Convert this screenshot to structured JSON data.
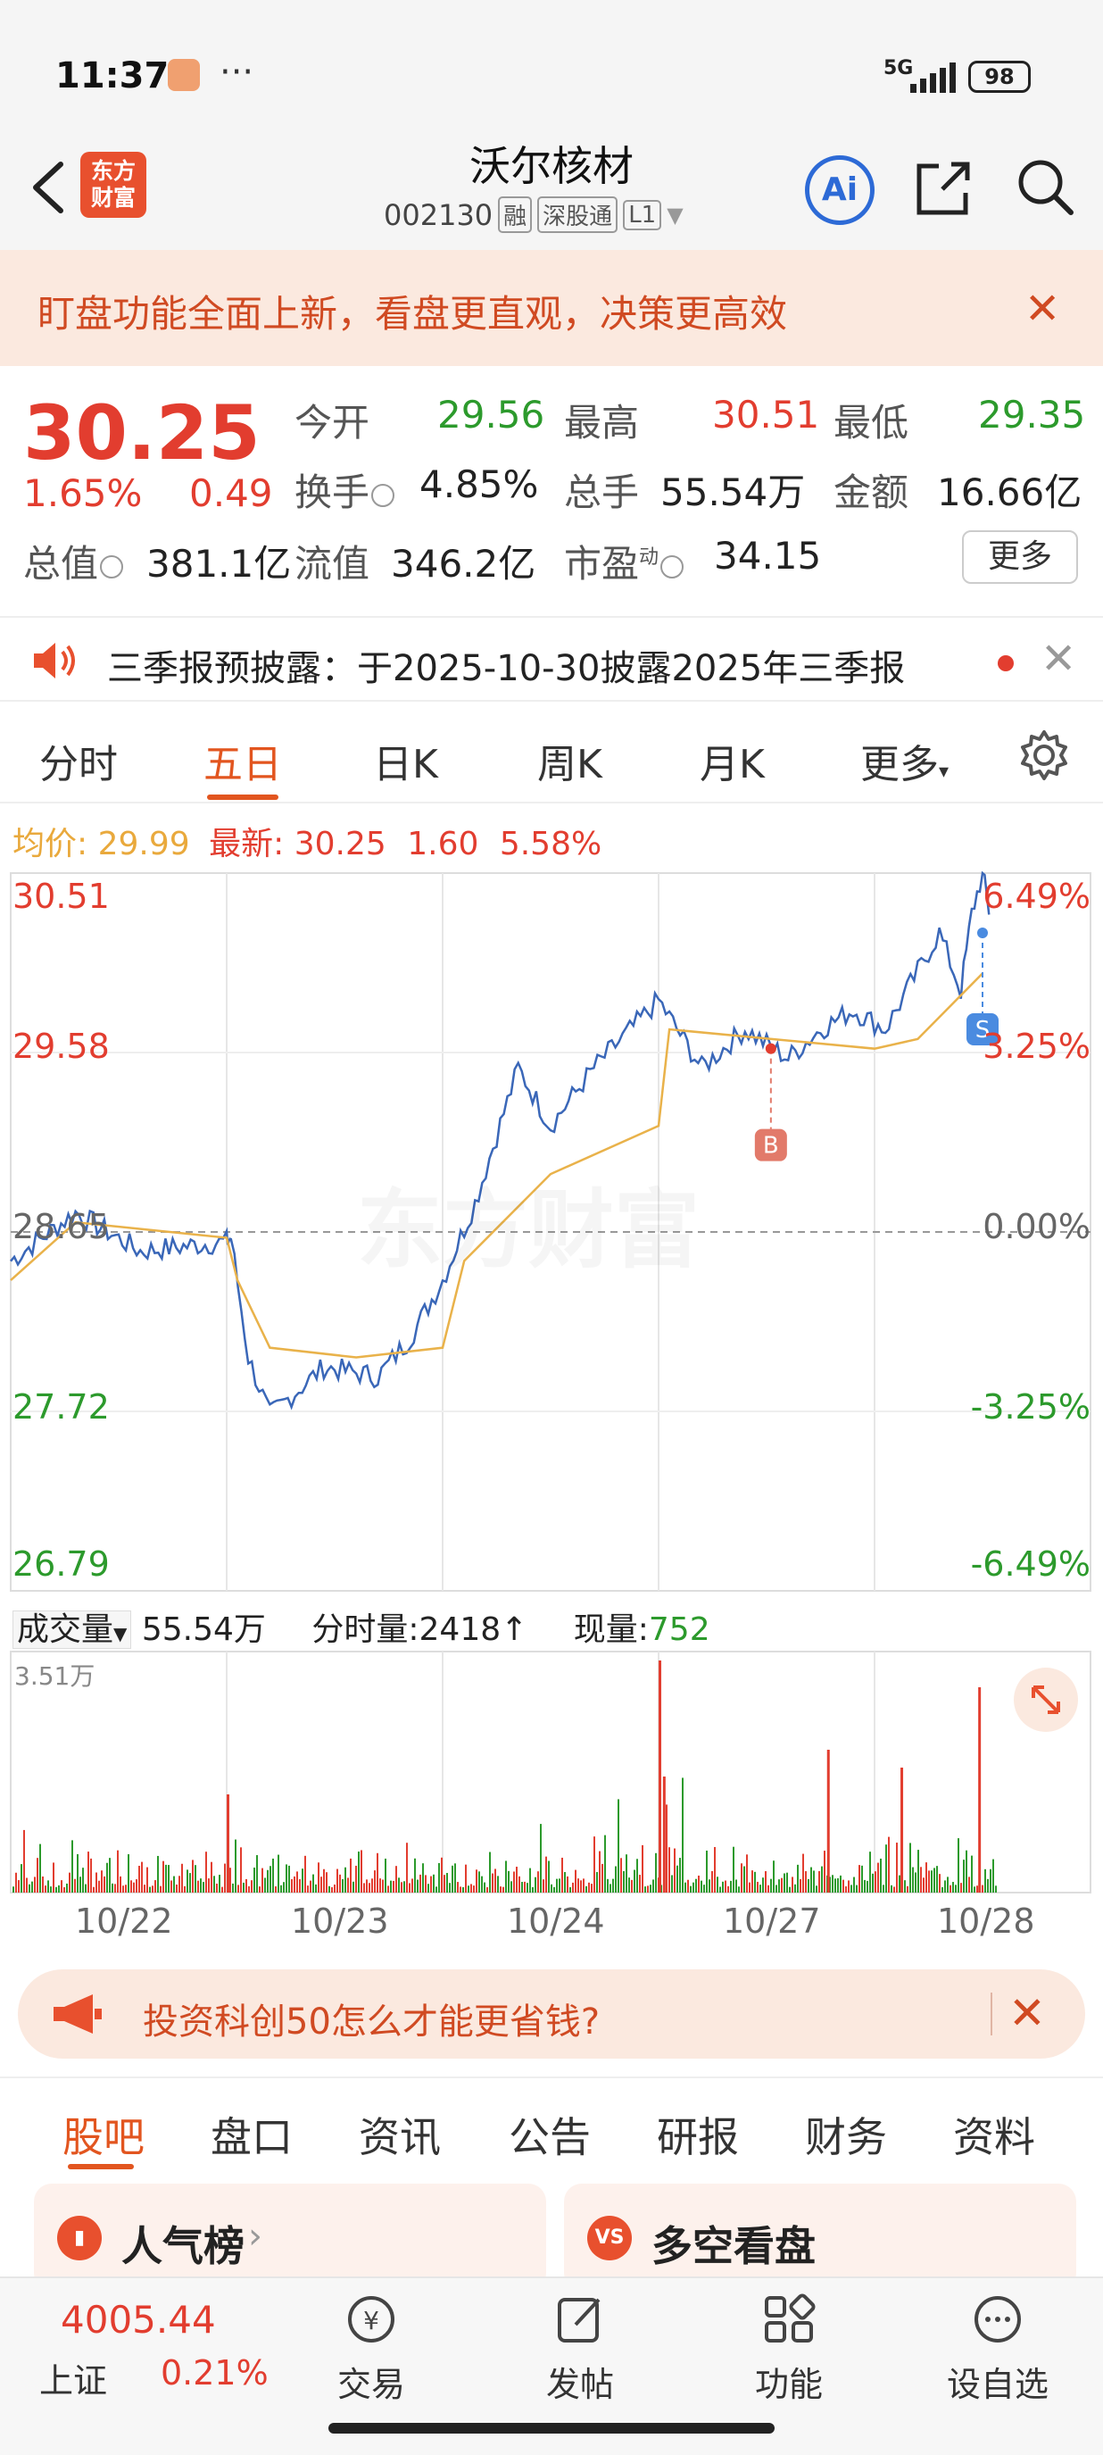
{
  "status": {
    "time": "11:37",
    "network": "5G",
    "battery": "98"
  },
  "nav": {
    "logo_line1": "东方",
    "logo_line2": "财富",
    "title": "沃尔核材",
    "code": "002130",
    "tag_rong": "融",
    "tag_sgt": "深股通",
    "tag_l1": "L1"
  },
  "banner": {
    "text": "盯盘功能全面上新，看盘更直观，决策更高效"
  },
  "quote": {
    "price": "30.25",
    "change_pct": "1.65%",
    "change": "0.49",
    "open_label": "今开",
    "open": "29.56",
    "high_label": "最高",
    "high": "30.51",
    "low_label": "最低",
    "low": "29.35",
    "turnover_label": "换手",
    "turnover": "4.85%",
    "volume_label": "总手",
    "volume": "55.54万",
    "amount_label": "金额",
    "amount": "16.66亿",
    "mktcap_label": "总值",
    "mktcap": "381.1亿",
    "float_label": "流值",
    "float": "346.2亿",
    "pe_label": "市盈",
    "pe_sup": "动",
    "pe": "34.15",
    "more": "更多"
  },
  "notice": {
    "text": "三季报预披露：于2025-10-30披露2025年三季报"
  },
  "tabs": [
    "分时",
    "五日",
    "日K",
    "周K",
    "月K",
    "更多"
  ],
  "info": {
    "avg_label": "均价:",
    "avg": "29.99",
    "last_label": "最新:",
    "last": "30.25",
    "chg": "1.60",
    "pct": "5.58%"
  },
  "chart_data": {
    "type": "line",
    "y_ticks_left": [
      "30.51",
      "29.58",
      "28.65",
      "27.72",
      "26.79"
    ],
    "y_ticks_right": [
      "6.49%",
      "3.25%",
      "0.00%",
      "-3.25%",
      "-6.49%"
    ],
    "ylim": [
      26.79,
      30.51
    ],
    "x_labels": [
      "10/22",
      "10/23",
      "10/24",
      "10/27",
      "10/28"
    ],
    "watermark": "东方财富",
    "markers": [
      {
        "label": "B",
        "day": "10/27"
      },
      {
        "label": "S",
        "day": "10/28"
      }
    ],
    "volume_max_label": "3.51万"
  },
  "volume": {
    "label": "成交量",
    "total": "55.54万",
    "tick_label": "分时量:",
    "tick": "2418",
    "now_label": "现量:",
    "now": "752"
  },
  "ad": {
    "text": "投资科创50怎么才能更省钱?"
  },
  "bottom_tabs": [
    "股吧",
    "盘口",
    "资讯",
    "公告",
    "研报",
    "财务",
    "资料"
  ],
  "cards": [
    {
      "title": "人气榜",
      "icon": "bar-chart-icon"
    },
    {
      "title": "多空看盘",
      "icon": "vs-icon"
    }
  ],
  "bottom_bar": {
    "index_value": "4005.44",
    "index_name": "上证",
    "index_pct": "0.21%",
    "items": [
      "交易",
      "发帖",
      "功能",
      "设自选"
    ]
  }
}
